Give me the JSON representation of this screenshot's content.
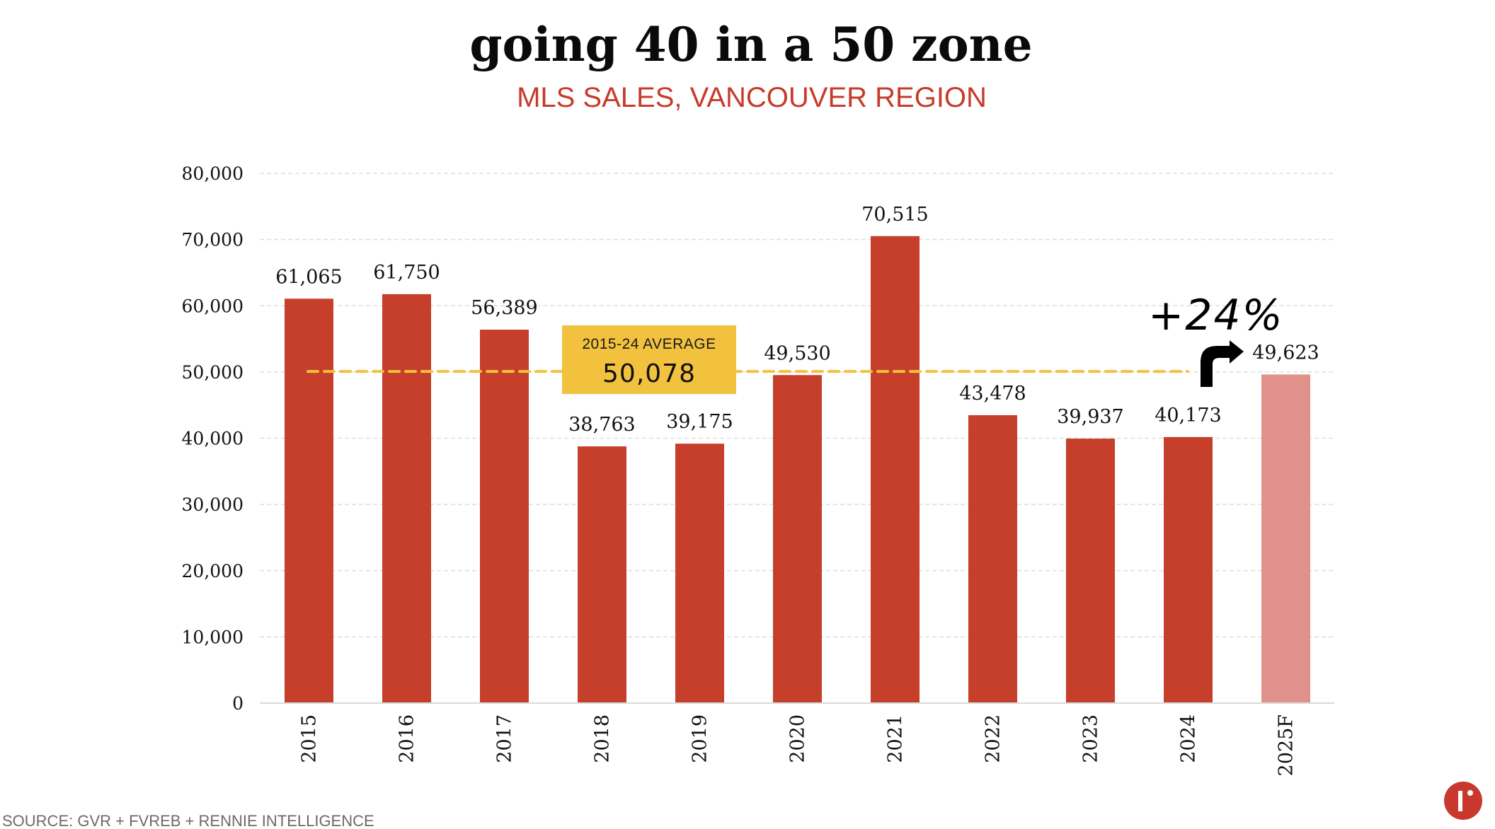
{
  "colors": {
    "bar": "#C53F2B",
    "bar_forecast": "#E0928A",
    "average_line": "#F2C13E",
    "average_box": "#F2C13E",
    "subtitle": "#C63B2B",
    "logo": "#C9382D",
    "grid": "#DDDDDD"
  },
  "chart_data": {
    "type": "bar",
    "title": "going 40 in a 50 zone",
    "subtitle": "MLS SALES, VANCOUVER REGION",
    "xlabel": "",
    "ylabel": "",
    "ylim": [
      0,
      80000
    ],
    "yticks": [
      0,
      10000,
      20000,
      30000,
      40000,
      50000,
      60000,
      70000,
      80000
    ],
    "ytick_labels": [
      "0",
      "10,000",
      "20,000",
      "30,000",
      "40,000",
      "50,000",
      "60,000",
      "70,000",
      "80,000"
    ],
    "grid": true,
    "categories": [
      "2015",
      "2016",
      "2017",
      "2018",
      "2019",
      "2020",
      "2021",
      "2022",
      "2023",
      "2024",
      "2025F"
    ],
    "values": [
      61065,
      61750,
      56389,
      38763,
      39175,
      49530,
      70515,
      43478,
      39937,
      40173,
      49623
    ],
    "data_labels": [
      "61,065",
      "61,750",
      "56,389",
      "38,763",
      "39,175",
      "49,530",
      "70,515",
      "43,478",
      "39,937",
      "40,173",
      "49,623"
    ],
    "forecast": [
      false,
      false,
      false,
      false,
      false,
      false,
      false,
      false,
      false,
      false,
      true
    ],
    "average": {
      "value": 50078,
      "label": "2015-24 AVERAGE",
      "value_label": "50,078"
    },
    "annotation": {
      "text": "+24%",
      "arrow": "bent-arrow-up-right"
    }
  },
  "footer": {
    "source": "SOURCE: GVR + FVREB + RENNIE INTELLIGENCE",
    "logo_letter": "r"
  }
}
